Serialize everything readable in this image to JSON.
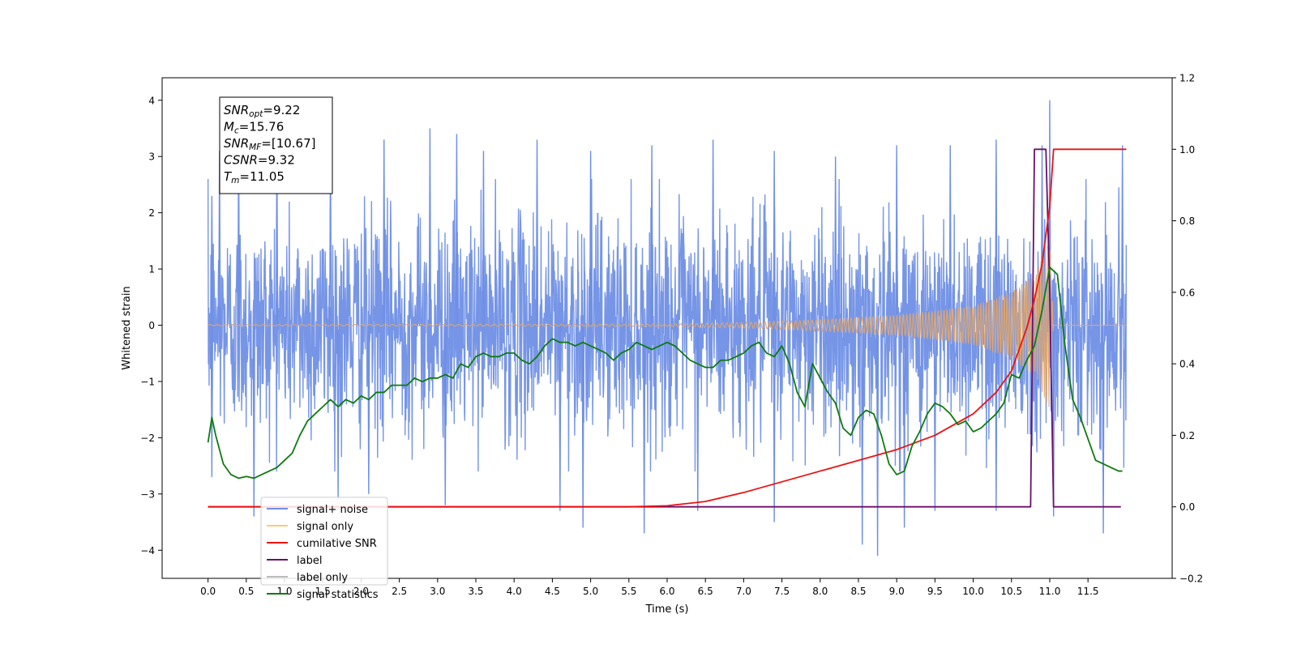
{
  "chart_data": {
    "type": "line",
    "xlabel": "Time (s)",
    "ylabel_left": "Whitened strain",
    "ylabel_right": "",
    "xlim": [
      -0.6,
      12.6
    ],
    "ylim_left": [
      -4.5,
      4.4
    ],
    "ylim_right": [
      -0.2,
      1.2
    ],
    "x_ticks": [
      "0.0",
      "0.5",
      "1.0",
      "1.5",
      "2.0",
      "2.5",
      "3.0",
      "3.5",
      "4.0",
      "4.5",
      "5.0",
      "5.5",
      "6.0",
      "6.5",
      "7.0",
      "7.5",
      "8.0",
      "8.5",
      "9.0",
      "9.5",
      "10.0",
      "10.5",
      "11.0",
      "11.5"
    ],
    "y_left_ticks": [
      "4",
      "3",
      "2",
      "1",
      "0",
      "−1",
      "−2",
      "−3",
      "−4"
    ],
    "y_right_ticks": [
      "1.2",
      "1.0",
      "0.8",
      "0.6",
      "0.4",
      "0.2",
      "0.0",
      "−0.2"
    ],
    "grid": false,
    "legend_position": "lower-left",
    "legend": [
      {
        "label": "signal+ noise",
        "color": "#6f8fe6"
      },
      {
        "label": "signal only",
        "color": "#ffc87a"
      },
      {
        "label": "cumilative SNR",
        "color": "#ee1111"
      },
      {
        "label": "label",
        "color": "#6a0f6a"
      },
      {
        "label": "label only",
        "color": "#bbbbbb"
      },
      {
        "label": "signal statistics",
        "color": "#0f7a0f"
      }
    ],
    "annotation": [
      {
        "base": "SNR",
        "sub": "opt",
        "value": "=9.22"
      },
      {
        "base": "M",
        "sub": "c",
        "value": "=15.76"
      },
      {
        "base": "SNR",
        "sub": "MF",
        "value": "=[10.67]"
      },
      {
        "base": "CSNR",
        "sub": "",
        "value": "=9.32"
      },
      {
        "base": "T",
        "sub": "m",
        "value": "=11.05"
      }
    ],
    "series": [
      {
        "name": "signal+ noise",
        "axis": "left",
        "x_range": [
          0.0,
          12.0
        ],
        "typical_range": [
          -2.5,
          2.5
        ],
        "peaks": [
          [
            0.05,
            2.3
          ],
          [
            0.15,
            3.1
          ],
          [
            0.4,
            3.3
          ],
          [
            0.9,
            3.4
          ],
          [
            1.6,
            3.3
          ],
          [
            2.3,
            3.3
          ],
          [
            2.9,
            3.5
          ],
          [
            3.25,
            3.4
          ],
          [
            3.6,
            3.1
          ],
          [
            4.3,
            3.3
          ],
          [
            5.0,
            3.1
          ],
          [
            5.8,
            3.2
          ],
          [
            6.6,
            3.3
          ],
          [
            7.4,
            3.1
          ],
          [
            8.2,
            3.0
          ],
          [
            9.0,
            3.2
          ],
          [
            9.7,
            3.2
          ],
          [
            10.3,
            3.3
          ],
          [
            10.9,
            3.2
          ],
          [
            11.0,
            4.0
          ],
          [
            11.95,
            3.2
          ]
        ],
        "troughs": [
          [
            0.05,
            -2.7
          ],
          [
            0.6,
            -3.4
          ],
          [
            1.7,
            -3.1
          ],
          [
            2.1,
            -3.0
          ],
          [
            3.1,
            -3.2
          ],
          [
            4.6,
            -3.3
          ],
          [
            4.9,
            -3.6
          ],
          [
            5.7,
            -3.7
          ],
          [
            6.4,
            -3.3
          ],
          [
            7.4,
            -3.5
          ],
          [
            8.55,
            -3.9
          ],
          [
            8.75,
            -4.1
          ],
          [
            9.1,
            -3.6
          ],
          [
            9.5,
            -3.3
          ],
          [
            10.3,
            -3.3
          ],
          [
            11.05,
            -3.4
          ],
          [
            11.7,
            -3.7
          ]
        ]
      },
      {
        "name": "signal only",
        "axis": "left",
        "envelope": [
          [
            0.0,
            0.01
          ],
          [
            6.0,
            0.02
          ],
          [
            7.0,
            0.05
          ],
          [
            8.0,
            0.1
          ],
          [
            9.0,
            0.18
          ],
          [
            9.5,
            0.26
          ],
          [
            10.0,
            0.35
          ],
          [
            10.5,
            0.6
          ],
          [
            10.8,
            0.9
          ],
          [
            11.0,
            1.5
          ],
          [
            11.05,
            0.0
          ],
          [
            12.0,
            0.0
          ]
        ]
      },
      {
        "name": "cumilative SNR",
        "axis": "right",
        "x": [
          0.0,
          5.5,
          6.0,
          6.5,
          7.0,
          7.5,
          8.0,
          8.5,
          9.0,
          9.5,
          10.0,
          10.3,
          10.5,
          10.7,
          10.8,
          10.9,
          11.0,
          11.05,
          11.1,
          12.0
        ],
        "y": [
          0.0,
          0.0,
          0.003,
          0.015,
          0.04,
          0.07,
          0.1,
          0.13,
          0.16,
          0.2,
          0.26,
          0.32,
          0.38,
          0.5,
          0.58,
          0.68,
          0.84,
          1.0,
          1.0,
          1.0
        ]
      },
      {
        "name": "label",
        "axis": "right",
        "x": [
          0.0,
          10.75,
          10.8,
          10.95,
          11.0,
          11.05,
          11.93
        ],
        "y": [
          0.0,
          0.0,
          1.0,
          1.0,
          0.6,
          0.0,
          0.0
        ]
      },
      {
        "name": "signal statistics",
        "axis": "right",
        "x": [
          0.0,
          0.05,
          0.1,
          0.2,
          0.3,
          0.4,
          0.5,
          0.6,
          0.7,
          0.8,
          0.9,
          1.0,
          1.1,
          1.2,
          1.3,
          1.4,
          1.5,
          1.6,
          1.7,
          1.8,
          1.9,
          2.0,
          2.1,
          2.2,
          2.3,
          2.4,
          2.5,
          2.6,
          2.7,
          2.8,
          2.9,
          3.0,
          3.1,
          3.2,
          3.3,
          3.4,
          3.5,
          3.6,
          3.7,
          3.8,
          3.9,
          4.0,
          4.1,
          4.2,
          4.3,
          4.4,
          4.5,
          4.6,
          4.7,
          4.8,
          4.9,
          5.0,
          5.1,
          5.2,
          5.3,
          5.4,
          5.5,
          5.6,
          5.7,
          5.8,
          5.9,
          6.0,
          6.1,
          6.2,
          6.3,
          6.4,
          6.5,
          6.6,
          6.7,
          6.8,
          6.9,
          7.0,
          7.1,
          7.2,
          7.3,
          7.4,
          7.5,
          7.6,
          7.7,
          7.8,
          7.9,
          8.0,
          8.1,
          8.2,
          8.3,
          8.4,
          8.5,
          8.6,
          8.7,
          8.8,
          8.9,
          9.0,
          9.1,
          9.2,
          9.3,
          9.4,
          9.5,
          9.6,
          9.7,
          9.8,
          9.9,
          10.0,
          10.1,
          10.2,
          10.3,
          10.4,
          10.5,
          10.6,
          10.7,
          10.8,
          10.9,
          11.0,
          11.1,
          11.2,
          11.3,
          11.4,
          11.5,
          11.6,
          11.7,
          11.8,
          11.9,
          11.95
        ],
        "y": [
          0.18,
          0.25,
          0.2,
          0.12,
          0.09,
          0.08,
          0.085,
          0.08,
          0.09,
          0.1,
          0.11,
          0.13,
          0.15,
          0.2,
          0.24,
          0.26,
          0.28,
          0.3,
          0.28,
          0.3,
          0.29,
          0.31,
          0.3,
          0.32,
          0.32,
          0.34,
          0.34,
          0.34,
          0.36,
          0.35,
          0.36,
          0.36,
          0.37,
          0.36,
          0.4,
          0.39,
          0.42,
          0.43,
          0.42,
          0.42,
          0.43,
          0.43,
          0.41,
          0.4,
          0.42,
          0.45,
          0.47,
          0.46,
          0.46,
          0.45,
          0.46,
          0.45,
          0.44,
          0.43,
          0.41,
          0.43,
          0.44,
          0.46,
          0.45,
          0.44,
          0.45,
          0.46,
          0.45,
          0.43,
          0.41,
          0.4,
          0.39,
          0.39,
          0.41,
          0.41,
          0.42,
          0.43,
          0.45,
          0.46,
          0.43,
          0.42,
          0.45,
          0.4,
          0.32,
          0.28,
          0.4,
          0.36,
          0.32,
          0.29,
          0.22,
          0.2,
          0.25,
          0.27,
          0.26,
          0.2,
          0.12,
          0.09,
          0.1,
          0.17,
          0.21,
          0.26,
          0.29,
          0.28,
          0.26,
          0.23,
          0.24,
          0.21,
          0.22,
          0.24,
          0.26,
          0.29,
          0.37,
          0.36,
          0.41,
          0.45,
          0.55,
          0.67,
          0.65,
          0.45,
          0.3,
          0.25,
          0.19,
          0.13,
          0.12,
          0.11,
          0.1,
          0.1
        ]
      }
    ]
  }
}
